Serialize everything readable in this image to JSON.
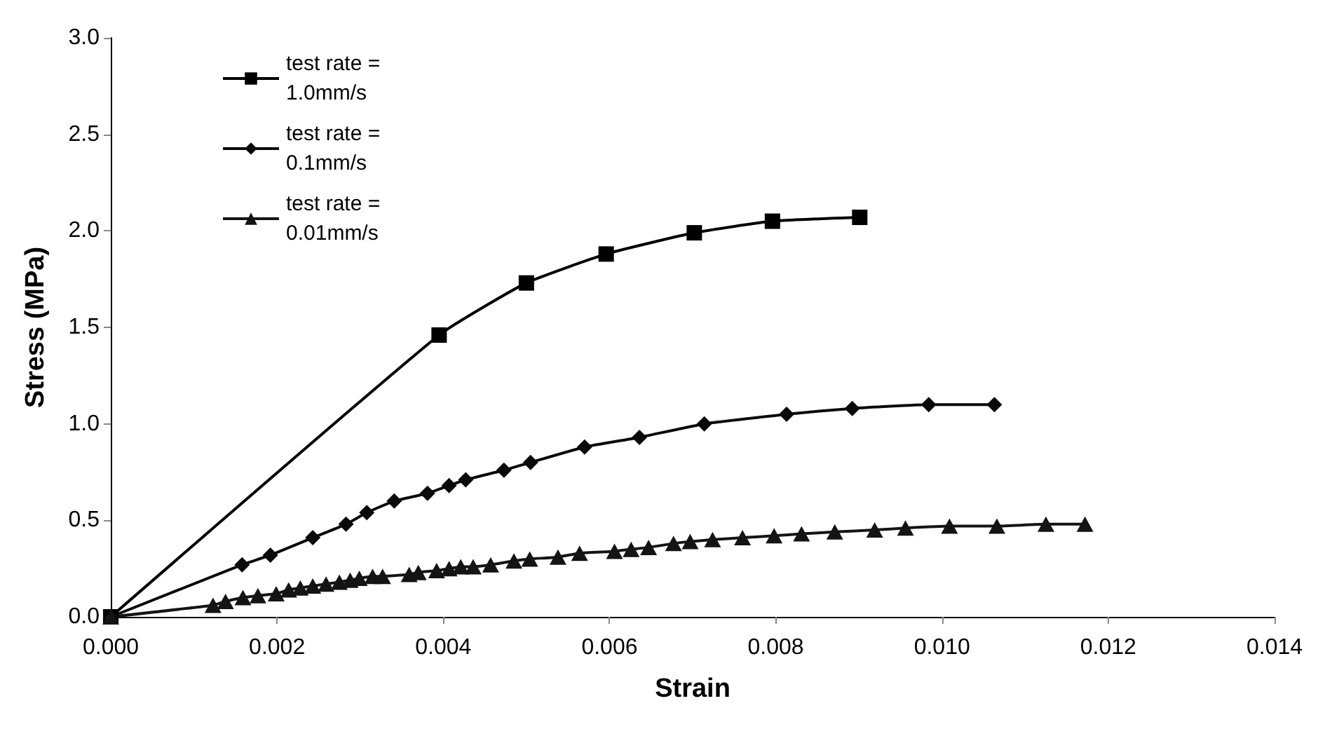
{
  "chart_data": {
    "type": "line",
    "xlabel": "Strain",
    "ylabel": "Stress (MPa)",
    "xlim": [
      0,
      0.014
    ],
    "xticks": [
      {
        "value": 0,
        "label": "0.000"
      },
      {
        "value": 0.002,
        "label": "0.002"
      },
      {
        "value": 0.004,
        "label": "0.004"
      },
      {
        "value": 0.006,
        "label": "0.006"
      },
      {
        "value": 0.008,
        "label": "0.008"
      },
      {
        "value": 0.01,
        "label": "0.010"
      },
      {
        "value": 0.012,
        "label": "0.012"
      },
      {
        "value": 0.014,
        "label": "0.014"
      }
    ],
    "ylim": [
      0,
      3
    ],
    "yticks": [
      {
        "value": 0,
        "label": "0.0"
      },
      {
        "value": 0.5,
        "label": "0.5"
      },
      {
        "value": 1,
        "label": "1.0"
      },
      {
        "value": 1.5,
        "label": "1.5"
      },
      {
        "value": 2,
        "label": "2.0"
      },
      {
        "value": 2.5,
        "label": "2.5"
      },
      {
        "value": 3,
        "label": "3.0"
      }
    ],
    "grid": false,
    "legend": "top left",
    "series": [
      {
        "name": "test rate =\n1.0mm/s",
        "color": "#000000",
        "marker": "square",
        "x": [
          0,
          0.00395,
          0.005,
          0.00596,
          0.00702,
          0.00796,
          0.00901
        ],
        "values": [
          0,
          1.46,
          1.73,
          1.88,
          1.99,
          2.05,
          2.07
        ]
      },
      {
        "name": "test rate =\n0.1mm/s",
        "color": "#0a0a0a",
        "marker": "diamond",
        "x": [
          0,
          0.00158,
          0.00192,
          0.00243,
          0.00283,
          0.00308,
          0.00341,
          0.00381,
          0.00407,
          0.00427,
          0.00473,
          0.00505,
          0.0057,
          0.00636,
          0.00714,
          0.00813,
          0.00892,
          0.00984,
          0.01063
        ],
        "values": [
          0,
          0.27,
          0.32,
          0.41,
          0.48,
          0.54,
          0.6,
          0.64,
          0.68,
          0.71,
          0.76,
          0.8,
          0.88,
          0.93,
          1.0,
          1.05,
          1.08,
          1.1,
          1.1
        ]
      },
      {
        "name": "test rate =\n0.01mm/s",
        "color": "#141414",
        "marker": "triangle",
        "x": [
          0,
          0.00123,
          0.00138,
          0.00159,
          0.00177,
          0.00199,
          0.00214,
          0.00228,
          0.00243,
          0.00259,
          0.00275,
          0.00288,
          0.00299,
          0.00315,
          0.00327,
          0.00359,
          0.0037,
          0.00392,
          0.00407,
          0.00421,
          0.00436,
          0.00457,
          0.00485,
          0.00504,
          0.00538,
          0.00564,
          0.00606,
          0.00626,
          0.00647,
          0.00677,
          0.00697,
          0.00724,
          0.0076,
          0.00798,
          0.00831,
          0.00871,
          0.00919,
          0.00956,
          0.01009,
          0.01066,
          0.01125,
          0.01172
        ],
        "values": [
          0,
          0.06,
          0.08,
          0.1,
          0.11,
          0.12,
          0.14,
          0.15,
          0.16,
          0.17,
          0.18,
          0.19,
          0.2,
          0.21,
          0.21,
          0.22,
          0.23,
          0.24,
          0.25,
          0.26,
          0.26,
          0.27,
          0.29,
          0.3,
          0.31,
          0.33,
          0.34,
          0.35,
          0.36,
          0.38,
          0.39,
          0.4,
          0.41,
          0.42,
          0.43,
          0.44,
          0.45,
          0.46,
          0.47,
          0.47,
          0.48,
          0.48
        ]
      }
    ]
  }
}
